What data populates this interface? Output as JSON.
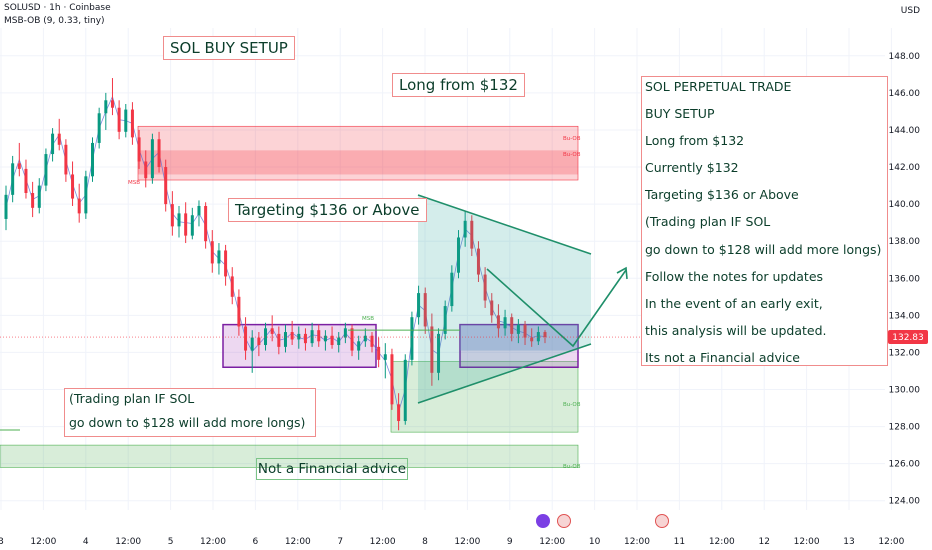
{
  "header": {
    "symbol_line": "SOLUSD · 1h · Coinbase",
    "indicator_line": "MSB-OB (9, 0.33, tiny)",
    "currency": "USD"
  },
  "annotations": {
    "title": "SOL BUY SETUP",
    "long_from": "Long from $132",
    "targeting": "Targeting $136 or Above",
    "not_advice": "Not a Financial advice",
    "msb_label_1": "MSB",
    "msb_label_2": "MSB",
    "bu_ob_1": "Bu-OB",
    "bu_ob_2": "Bu-OB",
    "bu_ob_3": "Bu-OB",
    "bu_ob_4": "Bu-OB"
  },
  "notes_box": {
    "lines": [
      "SOL PERPETUAL TRADE",
      "BUY SETUP",
      "Long from $132",
      "Currently $132",
      "Targeting $136 or Above",
      "(Trading plan IF SOL",
      "go down to $128 will add more longs)",
      "Follow the notes for updates",
      "In the event of an early exit,",
      "this analysis will be updated.",
      "Its not a Financial advice"
    ]
  },
  "plan_box": {
    "lines": [
      "(Trading plan IF SOL",
      "go down to $128 will add more longs)"
    ]
  },
  "chart_data": {
    "type": "candlestick",
    "symbol": "SOLUSD",
    "timeframe": "1h",
    "exchange": "Coinbase",
    "currency": "USD",
    "ylim": [
      123.5,
      149.5
    ],
    "y_ticks": [
      124,
      126,
      128,
      130,
      132,
      134,
      136,
      138,
      140,
      142,
      144,
      146,
      148
    ],
    "y_tick_labels": [
      "124.00",
      "126.00",
      "128.00",
      "130.00",
      "132.00",
      "134.00",
      "136.00",
      "138.00",
      "140.00",
      "142.00",
      "144.00",
      "146.00",
      "148.00"
    ],
    "x_tick_labels": [
      "3",
      "12:00",
      "4",
      "12:00",
      "5",
      "12:00",
      "6",
      "12:00",
      "7",
      "12:00",
      "8",
      "12:00",
      "9",
      "12:00",
      "10",
      "12:00",
      "11",
      "12:00",
      "12",
      "12:00",
      "13",
      "12:00"
    ],
    "current_price": 132.83,
    "current_price_label": "132.83",
    "zones": [
      {
        "kind": "bearish-order-block",
        "from_bar": 0.245,
        "to_bar": 1.0,
        "top": 144.2,
        "bottom": 141.3,
        "color": "#f23645"
      },
      {
        "kind": "bullish-order-block",
        "from_bar": 0.66,
        "to_bar": 1.0,
        "top": 131.5,
        "bottom": 127.7,
        "color": "#4caf50"
      },
      {
        "kind": "bullish-order-block",
        "from_bar": 0.0,
        "to_bar": 1.0,
        "top": 127.0,
        "bottom": 125.8,
        "color": "#4caf50"
      },
      {
        "kind": "range",
        "from_bar": 0.39,
        "to_bar": 0.665,
        "top": 133.5,
        "bottom": 131.2,
        "color": "#9c27b0"
      },
      {
        "kind": "range",
        "from_bar": 0.815,
        "to_bar": 1.0,
        "top": 133.5,
        "bottom": 131.2,
        "color": "#9c27b0"
      }
    ],
    "candles": [
      [
        139.2,
        141.0,
        138.6,
        140.5
      ],
      [
        140.5,
        142.6,
        140.1,
        142.2
      ],
      [
        142.2,
        143.3,
        141.5,
        141.9
      ],
      [
        141.9,
        142.4,
        140.3,
        140.6
      ],
      [
        140.6,
        141.2,
        139.3,
        139.8
      ],
      [
        139.8,
        141.4,
        139.5,
        141.0
      ],
      [
        141.0,
        143.0,
        140.7,
        142.7
      ],
      [
        142.7,
        144.1,
        142.3,
        143.8
      ],
      [
        143.8,
        144.6,
        142.9,
        143.2
      ],
      [
        143.2,
        143.5,
        141.2,
        141.6
      ],
      [
        141.6,
        142.3,
        139.9,
        140.3
      ],
      [
        140.3,
        141.1,
        139.0,
        139.5
      ],
      [
        139.5,
        141.8,
        139.2,
        141.5
      ],
      [
        141.5,
        143.6,
        141.2,
        143.3
      ],
      [
        143.3,
        145.2,
        143.0,
        144.9
      ],
      [
        144.9,
        146.0,
        144.0,
        145.6
      ],
      [
        145.6,
        146.8,
        144.8,
        145.2
      ],
      [
        145.2,
        145.6,
        143.5,
        143.9
      ],
      [
        143.9,
        145.4,
        143.6,
        145.1
      ],
      [
        145.1,
        145.5,
        143.2,
        143.6
      ],
      [
        143.6,
        144.0,
        141.9,
        142.3
      ],
      [
        142.3,
        142.9,
        140.9,
        141.4
      ],
      [
        141.4,
        143.8,
        141.1,
        143.5
      ],
      [
        143.5,
        143.9,
        141.7,
        142.0
      ],
      [
        142.0,
        142.4,
        139.6,
        140.0
      ],
      [
        140.0,
        140.7,
        138.3,
        138.8
      ],
      [
        138.8,
        139.9,
        138.2,
        139.5
      ],
      [
        139.5,
        140.1,
        137.9,
        138.3
      ],
      [
        138.3,
        139.8,
        138.1,
        139.4
      ],
      [
        139.4,
        140.2,
        138.8,
        139.9
      ],
      [
        139.9,
        140.1,
        137.6,
        138.0
      ],
      [
        138.0,
        138.6,
        136.3,
        136.8
      ],
      [
        136.8,
        137.9,
        136.2,
        137.5
      ],
      [
        137.5,
        137.8,
        135.6,
        136.1
      ],
      [
        136.1,
        136.6,
        134.6,
        135.0
      ],
      [
        135.0,
        135.4,
        132.9,
        133.4
      ],
      [
        133.4,
        133.9,
        131.6,
        132.1
      ],
      [
        132.1,
        133.2,
        130.9,
        132.8
      ],
      [
        132.8,
        133.1,
        131.8,
        132.4
      ],
      [
        132.4,
        133.6,
        132.1,
        133.3
      ],
      [
        133.3,
        134.0,
        132.6,
        133.0
      ],
      [
        133.0,
        133.4,
        131.9,
        132.3
      ],
      [
        132.3,
        133.5,
        132.0,
        133.1
      ],
      [
        133.1,
        133.7,
        132.4,
        132.7
      ],
      [
        132.7,
        133.4,
        132.2,
        133.0
      ],
      [
        133.0,
        133.3,
        132.1,
        132.5
      ],
      [
        132.5,
        133.6,
        132.3,
        133.2
      ],
      [
        133.2,
        133.5,
        132.3,
        132.6
      ],
      [
        132.6,
        133.2,
        132.1,
        132.9
      ],
      [
        132.9,
        133.4,
        132.2,
        132.4
      ],
      [
        132.4,
        133.1,
        132.0,
        132.8
      ],
      [
        132.8,
        133.6,
        132.5,
        133.3
      ],
      [
        133.3,
        133.5,
        131.8,
        132.1
      ],
      [
        132.1,
        132.9,
        131.6,
        132.6
      ],
      [
        132.6,
        133.3,
        132.3,
        132.9
      ],
      [
        132.9,
        133.1,
        132.0,
        132.3
      ],
      [
        132.3,
        132.8,
        131.2,
        131.6
      ],
      [
        131.6,
        132.5,
        130.6,
        131.9
      ],
      [
        131.9,
        132.2,
        128.9,
        129.2
      ],
      [
        129.2,
        129.8,
        127.8,
        128.3
      ],
      [
        128.3,
        131.9,
        128.1,
        131.6
      ],
      [
        131.6,
        134.2,
        131.3,
        133.9
      ],
      [
        133.9,
        135.6,
        133.5,
        135.2
      ],
      [
        135.2,
        135.5,
        133.0,
        133.4
      ],
      [
        133.4,
        134.1,
        130.2,
        130.9
      ],
      [
        130.9,
        133.3,
        130.5,
        133.0
      ],
      [
        133.0,
        134.8,
        132.7,
        134.5
      ],
      [
        134.5,
        136.7,
        134.2,
        136.3
      ],
      [
        136.3,
        138.6,
        136.0,
        138.2
      ],
      [
        138.2,
        139.6,
        137.7,
        139.1
      ],
      [
        139.1,
        139.4,
        137.2,
        137.6
      ],
      [
        137.6,
        138.0,
        135.8,
        136.2
      ],
      [
        136.2,
        136.6,
        134.4,
        134.8
      ],
      [
        134.8,
        135.2,
        133.6,
        134.0
      ],
      [
        134.0,
        134.6,
        132.8,
        133.3
      ],
      [
        133.3,
        134.3,
        132.9,
        133.9
      ],
      [
        133.9,
        134.1,
        132.6,
        133.0
      ],
      [
        133.0,
        133.8,
        132.5,
        133.5
      ],
      [
        133.5,
        133.7,
        132.4,
        132.8
      ],
      [
        132.8,
        133.3,
        132.3,
        132.6
      ],
      [
        132.6,
        133.4,
        132.4,
        133.1
      ],
      [
        133.1,
        133.2,
        132.5,
        132.83
      ]
    ]
  }
}
